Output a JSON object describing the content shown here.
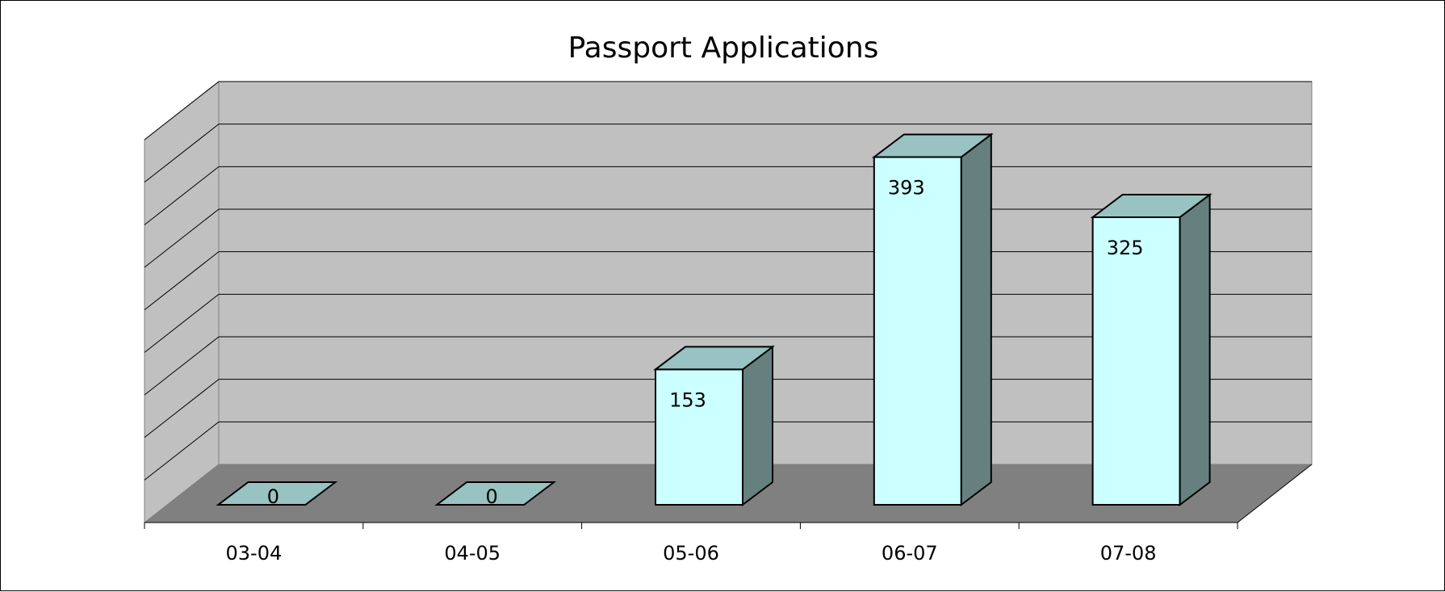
{
  "chart_data": {
    "type": "bar",
    "title": "Passport Applications",
    "xlabel": "",
    "ylabel": "",
    "categories": [
      "03-04",
      "04-05",
      "05-06",
      "06-07",
      "07-08"
    ],
    "values": [
      0,
      0,
      153,
      393,
      325
    ],
    "ylim": [
      0,
      450
    ],
    "grid": true,
    "legend": "none",
    "three_d": true,
    "colors": {
      "bar_front": "#CCFFFF",
      "bar_top": "#99C2C2",
      "bar_side": "#668080",
      "back_wall": "#C0C0C0",
      "side_wall": "#C0C0C0",
      "floor": "#808080",
      "gridline": "#000000"
    }
  }
}
